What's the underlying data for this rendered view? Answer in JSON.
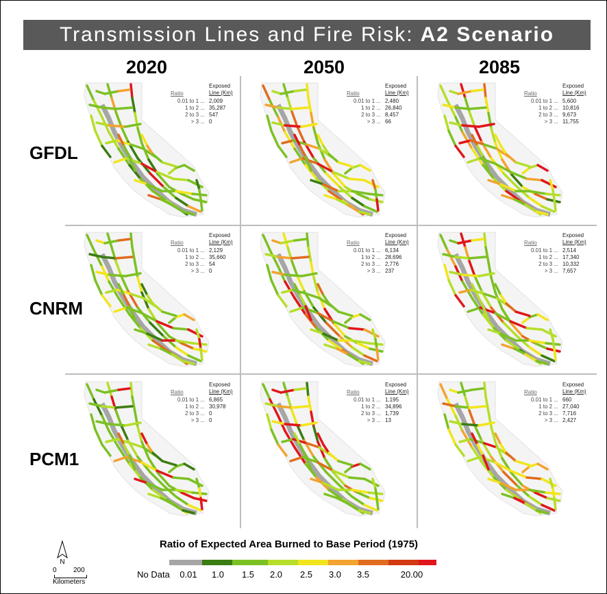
{
  "title": {
    "main": "Transmission Lines and Fire Risk:",
    "scenario": "A2 Scenario"
  },
  "years": [
    "2020",
    "2050",
    "2085"
  ],
  "models": [
    "GFDL",
    "CNRM",
    "PCM1"
  ],
  "table_header": {
    "line1": "Exposed",
    "line2": "Line (Km)",
    "ratio": "Ratio"
  },
  "ratio_rows": [
    "0.01 to 1 ...",
    "1 to 2 ...",
    "2 to 3 ...",
    "> 3 ..."
  ],
  "panels": [
    {
      "model": "GFDL",
      "year": "2020",
      "values": [
        "2,009",
        "35,287",
        "547",
        "0"
      ],
      "risk": 0.15
    },
    {
      "model": "GFDL",
      "year": "2050",
      "values": [
        "2,480",
        "26,840",
        "8,457",
        "66"
      ],
      "risk": 0.45
    },
    {
      "model": "GFDL",
      "year": "2085",
      "values": [
        "5,600",
        "10,816",
        "9,673",
        "11,755"
      ],
      "risk": 0.85
    },
    {
      "model": "CNRM",
      "year": "2020",
      "values": [
        "2,129",
        "35,660",
        "54",
        "0"
      ],
      "risk": 0.1
    },
    {
      "model": "CNRM",
      "year": "2050",
      "values": [
        "6,134",
        "28,696",
        "2,776",
        "237"
      ],
      "risk": 0.3
    },
    {
      "model": "CNRM",
      "year": "2085",
      "values": [
        "2,514",
        "17,340",
        "10,332",
        "7,657"
      ],
      "risk": 0.75
    },
    {
      "model": "PCM1",
      "year": "2020",
      "values": [
        "6,865",
        "30,978",
        "0",
        "0"
      ],
      "risk": 0.05
    },
    {
      "model": "PCM1",
      "year": "2050",
      "values": [
        "1,195",
        "34,896",
        "1,739",
        "13"
      ],
      "risk": 0.3
    },
    {
      "model": "PCM1",
      "year": "2085",
      "values": [
        "660",
        "27,040",
        "7,716",
        "2,427"
      ],
      "risk": 0.6
    }
  ],
  "legend": {
    "title": "Ratio of Expected Area Burned to Base Period (1975)",
    "labels": [
      "No Data",
      "0.01",
      "1.0",
      "1.5",
      "2.0",
      "2.5",
      "3.0",
      "3.5",
      "20.00"
    ],
    "colors": [
      "#a6a6a6",
      "#3a7d12",
      "#7cc123",
      "#b5de2a",
      "#f1e51d",
      "#f2a330",
      "#e06c1f",
      "#d33a12",
      "#e0161b"
    ]
  },
  "north_label": "N",
  "scale": {
    "zero": "0",
    "max": "200",
    "unit": "Kilometers"
  },
  "colors": {
    "title_bg": "#595959",
    "grey_lines": "#a6a6a6"
  }
}
